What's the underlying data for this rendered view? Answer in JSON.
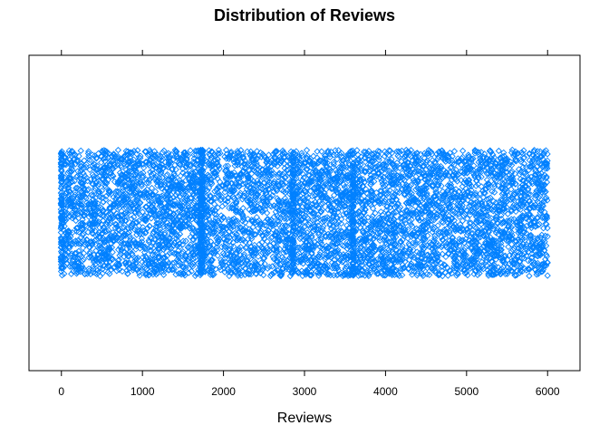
{
  "chart_data": {
    "type": "scatter",
    "title": "Distribution of Reviews",
    "xlabel": "Reviews",
    "ylabel": "",
    "xlim": [
      -400,
      6400
    ],
    "xticks": [
      0,
      1000,
      2000,
      3000,
      4000,
      5000,
      6000
    ],
    "x_range": [
      0,
      6000
    ],
    "jitter_band": [
      0.3,
      0.7
    ],
    "point_count": 6000,
    "marker": "open-diamond",
    "color": "#0080FF",
    "grid": false,
    "legend": "none",
    "dense_columns_at": [
      0,
      1720,
      1740,
      2860,
      3600
    ]
  }
}
